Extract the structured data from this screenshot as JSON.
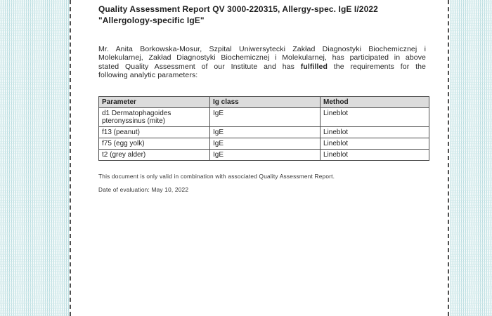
{
  "document": {
    "title_lines": [
      "Quality Assessment Report QV 3000-220315, Allergy-spec. IgE I/2022",
      "\"Allergology-specific IgE\""
    ],
    "paragraph_lines": [
      {
        "segments": [
          {
            "text": "Mr. Anita Borkowska-Mosur, Szpital Uniwersytecki Zakład Diagnostyki Biochemicznej i",
            "bold": false
          }
        ]
      },
      {
        "segments": [
          {
            "text": "Molekularnej, Zakład Diagnostyki Biochemicznej i Molekularnej, has participated in above",
            "bold": false
          }
        ]
      },
      {
        "segments": [
          {
            "text": "stated Quality Assessment of our Institute and has ",
            "bold": false
          },
          {
            "text": "fulfilled",
            "bold": true
          },
          {
            "text": " the requirements for the",
            "bold": false
          }
        ]
      },
      {
        "segments": [
          {
            "text": "following analytic parameters:",
            "bold": false
          }
        ]
      }
    ],
    "table": {
      "headers": [
        "Parameter",
        "Ig class",
        "Method"
      ],
      "rows": [
        [
          "d1 Dermatophagoides pteronyssinus (mite)",
          "IgE",
          "Lineblot"
        ],
        [
          "f13 (peanut)",
          "IgE",
          "Lineblot"
        ],
        [
          "f75 (egg yolk)",
          "IgE",
          "Lineblot"
        ],
        [
          "t2 (grey alder)",
          "IgE",
          "Lineblot"
        ]
      ]
    },
    "note": "This document is only valid in combination with associated Quality Assessment Report.",
    "evaluation_date_line": "Date of evaluation: May 10, 2022"
  },
  "colors": {
    "pattern_bg": "#f4fafa",
    "pattern_line_teal": "#a9d5d9",
    "pattern_line_light": "#cfe9ea",
    "page_bg": "#ffffff",
    "page_edge": "#4f4f4f",
    "table_border": "#4d4d4d",
    "table_header_bg": "#dcdcdc",
    "text": "#1f1f1f",
    "small_text": "#333333"
  }
}
